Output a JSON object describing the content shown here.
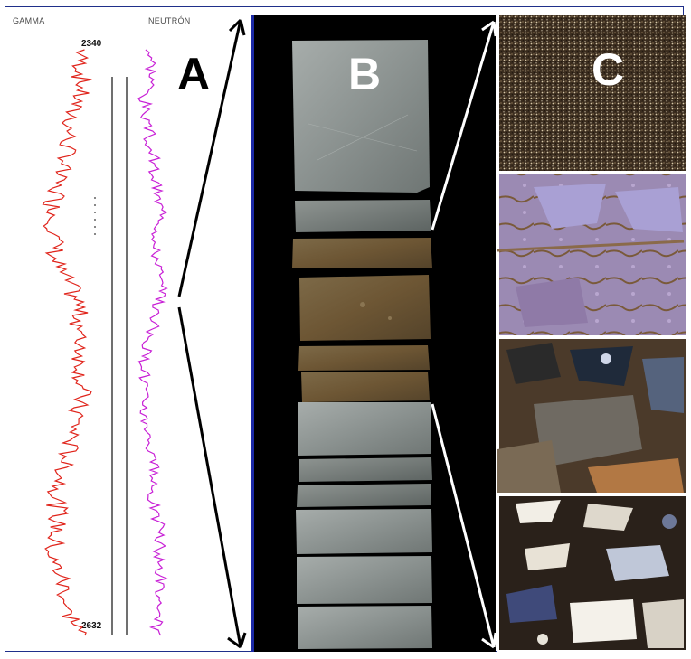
{
  "log_panel": {
    "gamma_header": "GAMMA",
    "neutron_header": "NEUTRÓN",
    "depth_top": "2340",
    "depth_bottom": "2632",
    "label": "A"
  },
  "core_panel": {
    "label": "B"
  },
  "thin_section_panel": {
    "label": "C"
  },
  "colors": {
    "gamma_curve": "#e0241b",
    "neutron_curve": "#c81fd6",
    "frame": "#1f2f8a",
    "core_background": "#000000",
    "gray_core": "#8d9492",
    "brown_core": "#6d5634"
  }
}
